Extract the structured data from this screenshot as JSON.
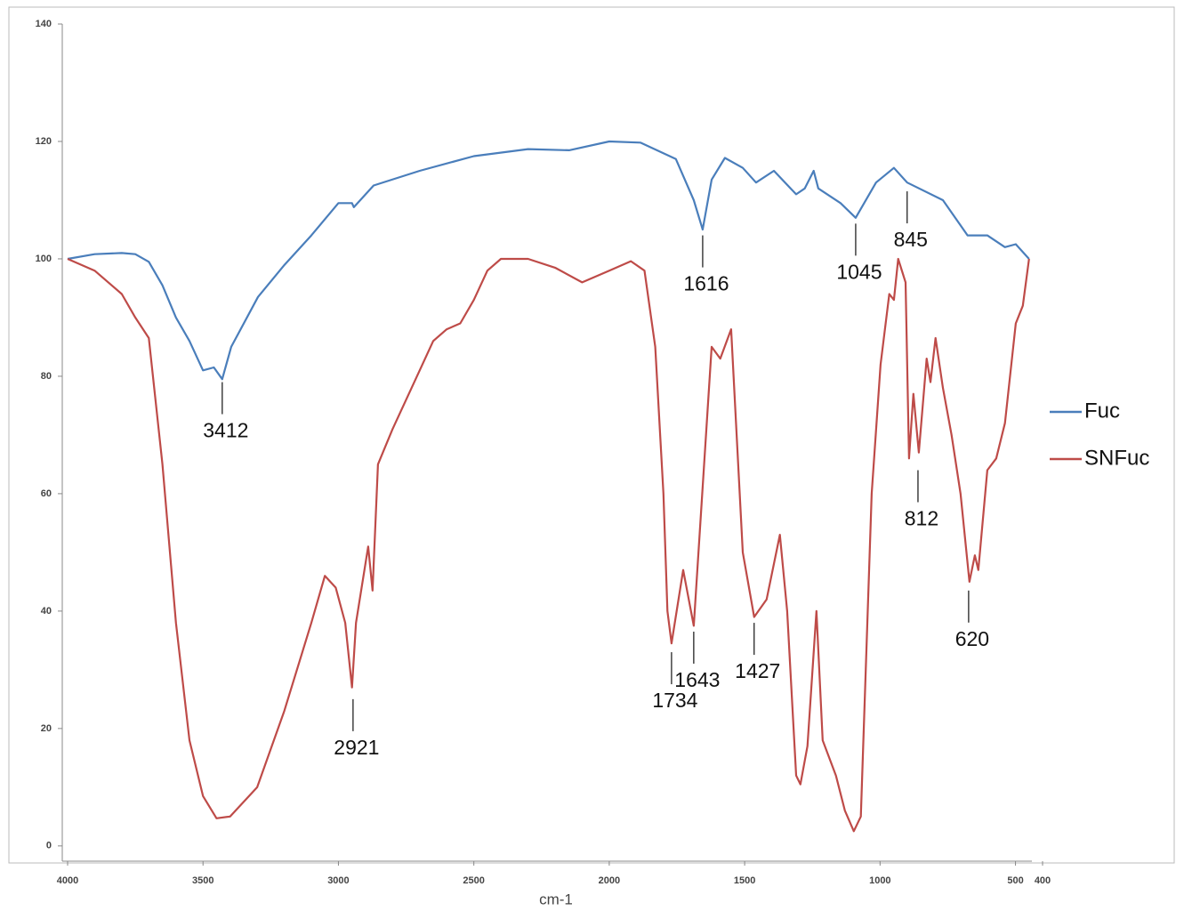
{
  "chart_data": {
    "type": "line",
    "xlabel": "cm-1",
    "xlim": [
      4000,
      400
    ],
    "xticks": [
      4000,
      3500,
      3000,
      2500,
      2000,
      1500,
      1000,
      500,
      400
    ],
    "ylim": [
      -2.6,
      140
    ],
    "yticks": [
      0,
      20,
      40,
      60,
      80,
      100,
      120,
      140
    ],
    "series": [
      {
        "name": "Fuc",
        "color": "#4a7ebb",
        "x": [
          4000,
          3900,
          3800,
          3750,
          3700,
          3650,
          3600,
          3550,
          3500,
          3460,
          3429,
          3396,
          3297,
          3199,
          3100,
          3000,
          2950,
          2943,
          2870,
          2700,
          2500,
          2300,
          2148,
          2000,
          1885,
          1754,
          1688,
          1655,
          1622,
          1573,
          1507,
          1458,
          1392,
          1310,
          1278,
          1245,
          1228,
          1146,
          1090,
          1015,
          949,
          900,
          768,
          677,
          604,
          539,
          499,
          450
        ],
        "values": [
          100,
          100.8,
          101,
          100.8,
          99.5,
          95.5,
          90,
          86,
          81,
          81.5,
          79.5,
          85,
          93.5,
          99,
          104,
          109.5,
          109.5,
          108.8,
          112.5,
          115,
          117.5,
          118.7,
          118.5,
          120,
          119.8,
          117,
          110,
          105,
          113.5,
          117.2,
          115.5,
          113,
          115,
          111,
          112,
          115,
          112,
          109.5,
          107,
          113,
          115.5,
          113,
          110,
          104,
          104,
          102,
          102.5,
          100
        ]
      },
      {
        "name": "SNFuc",
        "color": "#be4b48",
        "x": [
          4000,
          3900,
          3800,
          3750,
          3700,
          3650,
          3600,
          3550,
          3500,
          3450,
          3400,
          3300,
          3200,
          3100,
          3050,
          3010,
          2975,
          2950,
          2935,
          2890,
          2874,
          2854,
          2800,
          2700,
          2650,
          2600,
          2550,
          2500,
          2450,
          2400,
          2300,
          2200,
          2100,
          2000,
          1920,
          1870,
          1830,
          1800,
          1785,
          1770,
          1727,
          1688,
          1622,
          1590,
          1550,
          1507,
          1465,
          1419,
          1370,
          1343,
          1310,
          1294,
          1268,
          1235,
          1212,
          1163,
          1130,
          1097,
          1071,
          1031,
          998,
          966,
          949,
          933,
          906,
          893,
          877,
          857,
          828,
          814,
          795,
          768,
          736,
          703,
          670,
          650,
          637,
          604,
          571,
          539,
          499,
          473,
          450
        ],
        "values": [
          100,
          98,
          94,
          90,
          86.5,
          65,
          38,
          18,
          8.5,
          4.7,
          5,
          10,
          23,
          38,
          46,
          44,
          38,
          27,
          38,
          51,
          43.5,
          65,
          71,
          81,
          86,
          88,
          89,
          93,
          98,
          100,
          100,
          98.5,
          96,
          98,
          99.6,
          98,
          85,
          60,
          40,
          34.5,
          47,
          37.5,
          85,
          83,
          88,
          50,
          39,
          42,
          53,
          40,
          12,
          10.5,
          17,
          40,
          18,
          12,
          6,
          2.5,
          5,
          60,
          82,
          94,
          93,
          100,
          96,
          66,
          77,
          67,
          83,
          79,
          86.5,
          78,
          70,
          60,
          45,
          49.5,
          47,
          64,
          66,
          72,
          89,
          92,
          100
        ]
      }
    ],
    "annotations": [
      {
        "text": "3412",
        "x": 3429,
        "y": 79
      },
      {
        "text": "1616",
        "x": 1655,
        "y": 104
      },
      {
        "text": "1045",
        "x": 1090,
        "y": 106
      },
      {
        "text": "845",
        "x": 900,
        "y": 111.5
      },
      {
        "text": "2921",
        "x": 2946,
        "y": 25
      },
      {
        "text": "1734",
        "x": 1770,
        "y": 33
      },
      {
        "text": "1643",
        "x": 1688,
        "y": 36.5
      },
      {
        "text": "1427",
        "x": 1465,
        "y": 38
      },
      {
        "text": "812",
        "x": 860,
        "y": 64
      },
      {
        "text": "620",
        "x": 673,
        "y": 43.5
      }
    ]
  }
}
